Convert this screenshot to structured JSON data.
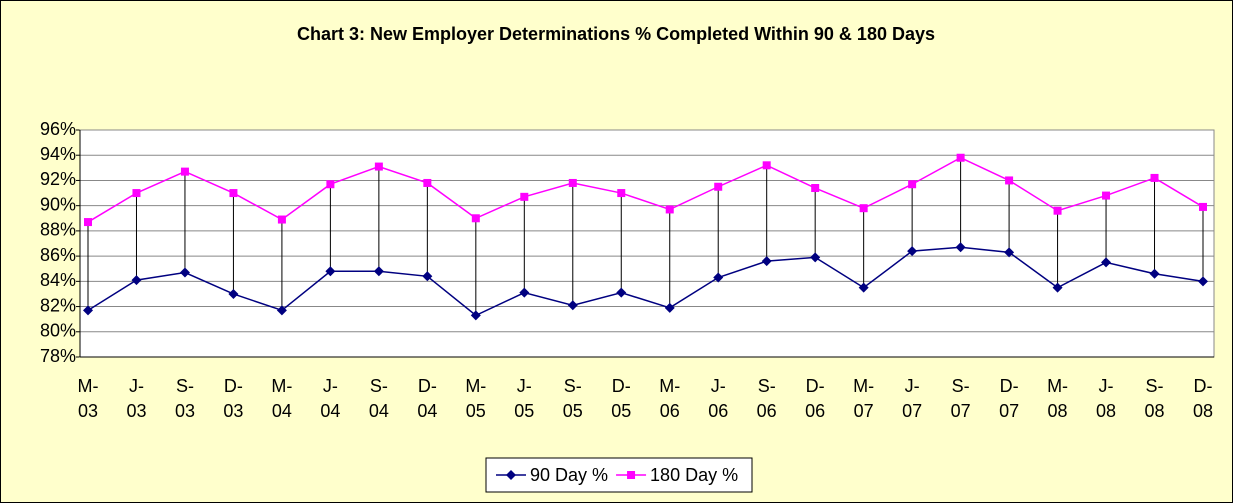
{
  "chart_data": {
    "type": "line",
    "title": "Chart 3: New Employer Determinations % Completed Within 90 & 180 Days",
    "categories": [
      [
        "M-",
        "03"
      ],
      [
        "J-",
        "03"
      ],
      [
        "S-",
        "03"
      ],
      [
        "D-",
        "03"
      ],
      [
        "M-",
        "04"
      ],
      [
        "J-",
        "04"
      ],
      [
        "S-",
        "04"
      ],
      [
        "D-",
        "04"
      ],
      [
        "M-",
        "05"
      ],
      [
        "J-",
        "05"
      ],
      [
        "S-",
        "05"
      ],
      [
        "D-",
        "05"
      ],
      [
        "M-",
        "06"
      ],
      [
        "J-",
        "06"
      ],
      [
        "S-",
        "06"
      ],
      [
        "D-",
        "06"
      ],
      [
        "M-",
        "07"
      ],
      [
        "J-",
        "07"
      ],
      [
        "S-",
        "07"
      ],
      [
        "D-",
        "07"
      ],
      [
        "M-",
        "08"
      ],
      [
        "J-",
        "08"
      ],
      [
        "S-",
        "08"
      ],
      [
        "D-",
        "08"
      ]
    ],
    "series": [
      {
        "name": "90 Day %",
        "color": "#000080",
        "marker": "diamond",
        "values": [
          81.7,
          84.1,
          84.7,
          83.0,
          81.7,
          84.8,
          84.8,
          84.4,
          81.3,
          83.1,
          82.1,
          83.1,
          81.9,
          84.3,
          85.6,
          85.9,
          83.5,
          86.4,
          86.7,
          86.3,
          83.5,
          85.5,
          84.6,
          84.0
        ]
      },
      {
        "name": "180 Day %",
        "color": "#FF00FF",
        "marker": "square",
        "values": [
          88.7,
          91.0,
          92.7,
          91.0,
          88.9,
          91.7,
          93.1,
          91.8,
          89.0,
          90.7,
          91.8,
          91.0,
          89.7,
          91.5,
          93.2,
          91.4,
          89.8,
          91.7,
          93.8,
          92.0,
          89.6,
          90.8,
          92.2,
          89.9
        ]
      }
    ],
    "ylim": [
      78,
      96
    ],
    "yticks": [
      {
        "value": 78,
        "label": "78%"
      },
      {
        "value": 80,
        "label": "80%"
      },
      {
        "value": 82,
        "label": "82%"
      },
      {
        "value": 84,
        "label": "84%"
      },
      {
        "value": 86,
        "label": "86%"
      },
      {
        "value": 88,
        "label": "88%"
      },
      {
        "value": 90,
        "label": "90%"
      },
      {
        "value": 92,
        "label": "92%"
      },
      {
        "value": 94,
        "label": "94%"
      },
      {
        "value": 96,
        "label": "96%"
      }
    ],
    "grid": true,
    "high_low_lines": true,
    "legend": "bottom"
  }
}
